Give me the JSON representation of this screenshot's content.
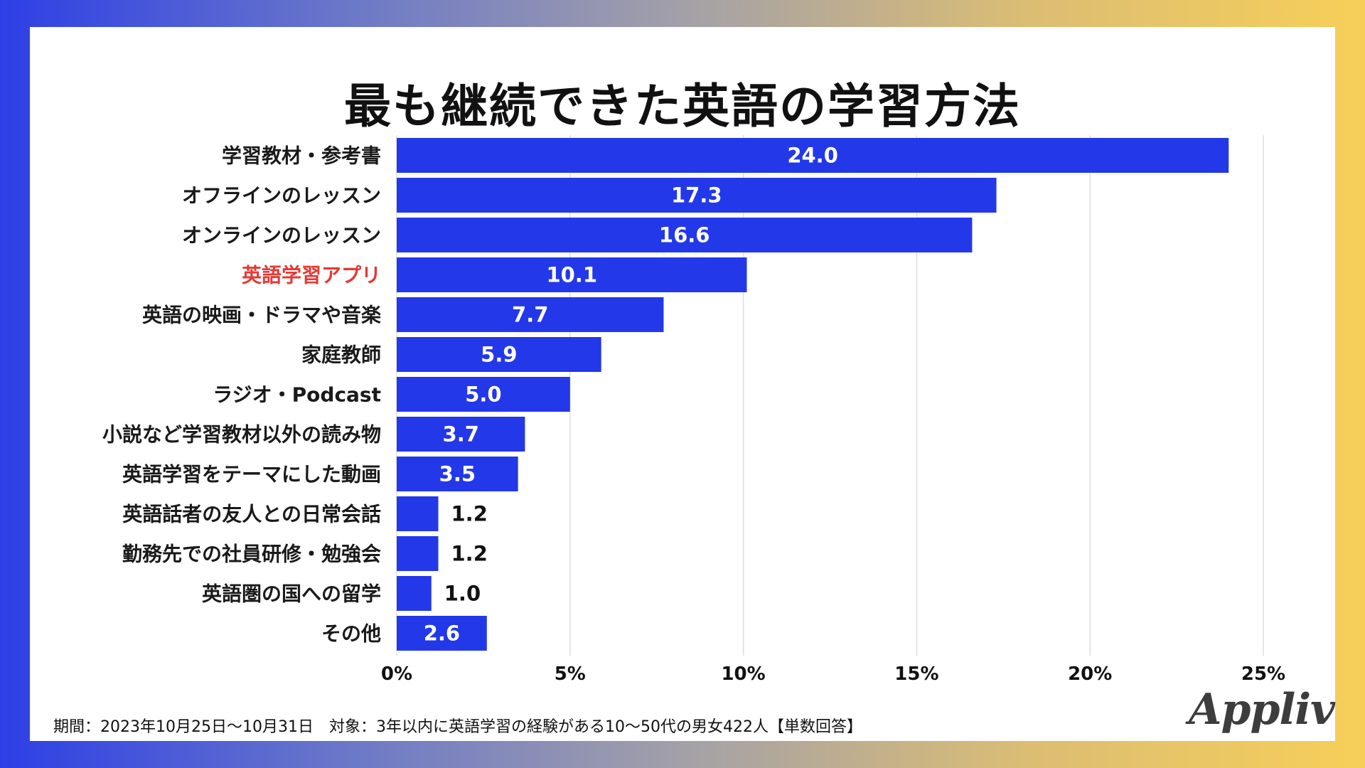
{
  "title": "最も継続できた英語の学習方法",
  "footnote": "期間：2023年10月25日〜10月31日　対象：3年以内に英語学習の経験がある10〜50代の男女422人【単数回答】",
  "brand": "Appliv",
  "colors": {
    "bar": "#2338e8",
    "highlight_label": "#e53935",
    "label": "#1a1a1a",
    "grid": "#dedede",
    "gradient_left": "#2d3fe6",
    "gradient_right": "#f7cf58"
  },
  "chart_data": {
    "type": "bar",
    "orientation": "horizontal",
    "categories": [
      "学習教材・参考書",
      "オフラインのレッスン",
      "オンラインのレッスン",
      "英語学習アプリ",
      "英語の映画・ドラマや音楽",
      "家庭教師",
      "ラジオ・Podcast",
      "小説など学習教材以外の読み物",
      "英語学習をテーマにした動画",
      "英語話者の友人との日常会話",
      "勤務先での社員研修・勉強会",
      "英語圏の国への留学",
      "その他"
    ],
    "values": [
      24.0,
      17.3,
      16.6,
      10.1,
      7.7,
      5.9,
      5.0,
      3.7,
      3.5,
      1.2,
      1.2,
      1.0,
      2.6
    ],
    "data_labels": [
      "24.0",
      "17.3",
      "16.6",
      "10.1",
      "7.7",
      "5.9",
      "5.0",
      "3.7",
      "3.5",
      "1.2",
      "1.2",
      "1.0",
      "2.6"
    ],
    "highlight_category": "英語学習アプリ",
    "xlim": [
      0,
      25
    ],
    "xticks": [
      0,
      5,
      10,
      15,
      20,
      25
    ],
    "xtick_labels": [
      "0%",
      "5%",
      "10%",
      "15%",
      "20%",
      "25%"
    ],
    "grid": true
  }
}
